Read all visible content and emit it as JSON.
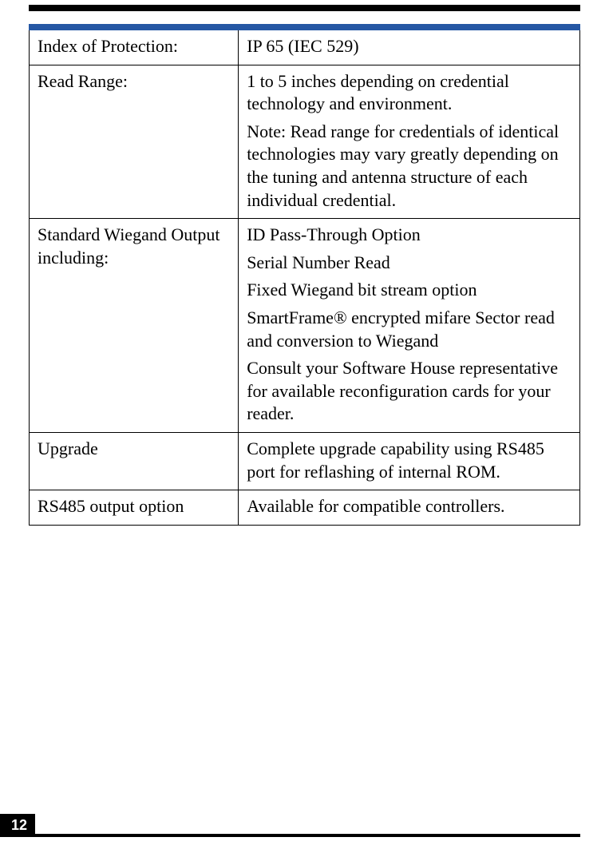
{
  "colors": {
    "black": "#000000",
    "blue_bar": "#2557a4",
    "white": "#ffffff"
  },
  "table": {
    "rows": [
      {
        "label": "Index of Protection:",
        "values": [
          "IP 65 (IEC 529)"
        ]
      },
      {
        "label": "Read Range:",
        "values": [
          "1 to 5 inches depending on credential technology and environment.",
          "Note: Read range for credentials of identical technologies may vary greatly depending on the tuning and antenna structure of each individual credential."
        ]
      },
      {
        "label": "Standard Wiegand Output including:",
        "values": [
          "ID Pass-Through Option",
          "Serial Number Read",
          "Fixed Wiegand bit stream option",
          "SmartFrame® encrypted mifare Sector read and conversion to Wiegand",
          "Consult your Software House representative for available reconfiguration cards for your reader."
        ]
      },
      {
        "label": "Upgrade",
        "values": [
          "Complete upgrade capability using RS485 port for reflashing of internal ROM."
        ]
      },
      {
        "label": "RS485 output option",
        "values": [
          "Available for compatible controllers."
        ]
      }
    ]
  },
  "page_number": "12"
}
